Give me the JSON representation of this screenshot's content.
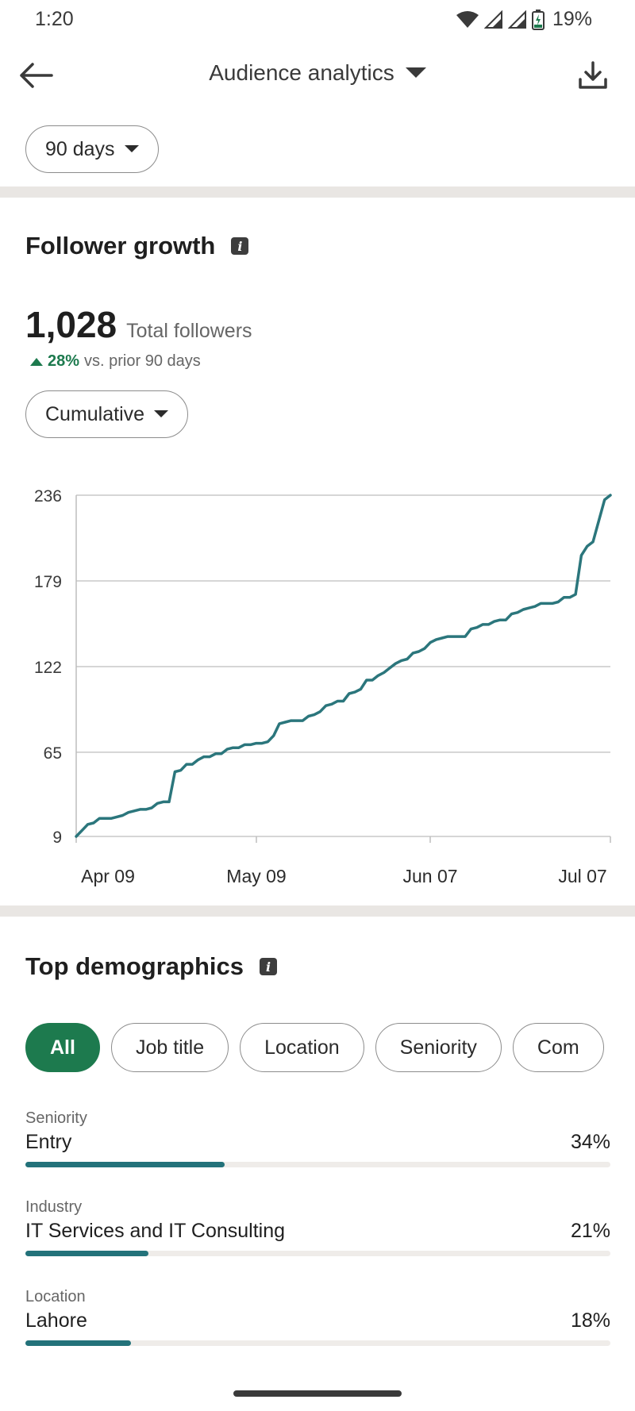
{
  "status": {
    "time": "1:20",
    "battery": "19%",
    "icons": [
      "wifi-icon",
      "signal-icon",
      "signal-icon",
      "battery-icon"
    ]
  },
  "appbar": {
    "title": "Audience analytics",
    "back_icon": "arrow-left-icon",
    "download_icon": "download-icon"
  },
  "range": {
    "label": "90 days"
  },
  "followers": {
    "title": "Follower growth",
    "total": "1,028",
    "total_label": "Total followers",
    "change_pct": "28%",
    "change_text": "vs. prior 90 days",
    "mode": "Cumulative"
  },
  "chart_data": {
    "type": "line",
    "title": "",
    "xlabel": "",
    "ylabel": "",
    "y_ticks": [
      "236",
      "179",
      "122",
      "65",
      "9"
    ],
    "y_tick_values": [
      236,
      179,
      122,
      65,
      9
    ],
    "x_ticks": [
      "Apr 09",
      "May 09",
      "Jun 07",
      "Jul 07"
    ],
    "ylim": [
      9,
      236
    ],
    "grid": true,
    "line_color": "#2b767c",
    "series": [
      {
        "values": [
          9,
          13,
          17,
          18,
          21,
          21,
          21,
          22,
          23,
          25,
          26,
          27,
          27,
          28,
          31,
          32,
          32,
          52,
          53,
          57,
          57,
          60,
          62,
          62,
          64,
          64,
          67,
          68,
          68,
          70,
          70,
          71,
          71,
          72,
          76,
          84,
          85,
          86,
          86,
          86,
          89,
          90,
          92,
          96,
          97,
          99,
          99,
          104,
          105,
          107,
          113,
          113,
          116,
          118,
          121,
          124,
          126,
          127,
          131,
          132,
          134,
          138,
          140,
          141,
          142,
          142,
          142,
          142,
          147,
          148,
          150,
          150,
          152,
          153,
          153,
          157,
          158,
          160,
          161,
          162,
          164,
          164,
          164,
          165,
          168,
          168,
          170,
          196,
          202,
          205,
          219,
          233,
          236
        ]
      }
    ]
  },
  "demographics": {
    "title": "Top demographics",
    "filters": [
      "All",
      "Job title",
      "Location",
      "Seniority",
      "Com"
    ],
    "active_filter": "All",
    "items": [
      {
        "category": "Seniority",
        "name": "Entry",
        "pct": "34%",
        "value": 34
      },
      {
        "category": "Industry",
        "name": "IT Services and IT Consulting",
        "pct": "21%",
        "value": 21
      },
      {
        "category": "Location",
        "name": "Lahore",
        "pct": "18%",
        "value": 18
      }
    ]
  },
  "colors": {
    "accent_green": "#1d7a4e",
    "bar_teal": "#23727a",
    "divider": "#e9e6e3"
  }
}
